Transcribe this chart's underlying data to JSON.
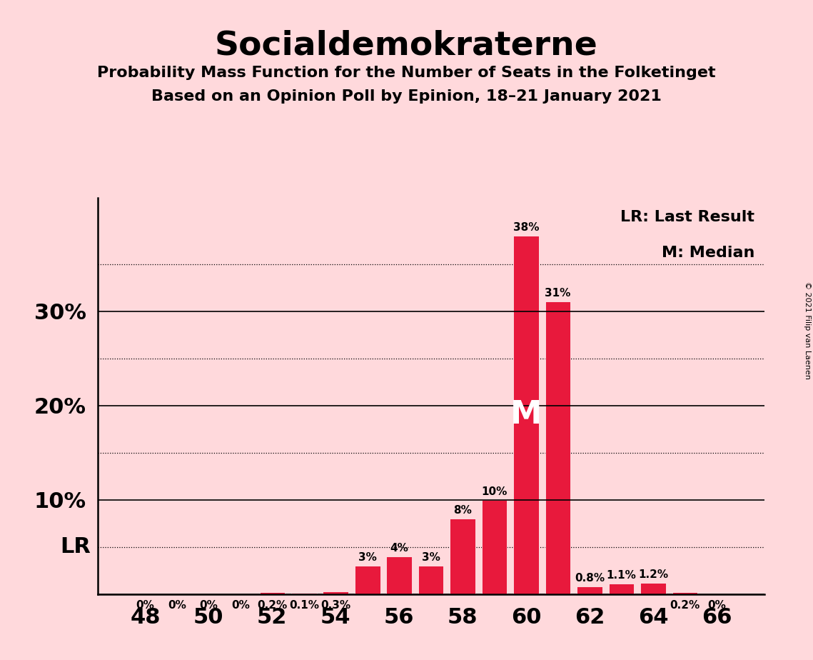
{
  "title": "Socialdemokraterne",
  "subtitle1": "Probability Mass Function for the Number of Seats in the Folketinget",
  "subtitle2": "Based on an Opinion Poll by Epinion, 18–21 January 2021",
  "copyright": "© 2021 Filip van Laenen",
  "seats_data": {
    "48": 0.0,
    "49": 0.0,
    "50": 0.0,
    "51": 0.0,
    "52": 0.2,
    "53": 0.1,
    "54": 0.3,
    "55": 3.0,
    "56": 4.0,
    "57": 3.0,
    "58": 8.0,
    "59": 10.0,
    "60": 38.0,
    "61": 31.0,
    "62": 0.8,
    "63": 1.1,
    "64": 1.2,
    "65": 0.2,
    "66": 0.0
  },
  "label_map": {
    "48": "0%",
    "49": "0%",
    "50": "0%",
    "51": "0%",
    "52": "0.2%",
    "53": "0.1%",
    "54": "0.3%",
    "55": "3%",
    "56": "4%",
    "57": "3%",
    "58": "8%",
    "59": "10%",
    "60": "38%",
    "61": "31%",
    "62": "0.8%",
    "63": "1.1%",
    "64": "1.2%",
    "65": "0.2%",
    "66": "0%"
  },
  "bar_color": "#E8193C",
  "background_color": "#FFD9DC",
  "median_seat": 60,
  "lr_y": 5.0,
  "solid_yticks": [
    10,
    20,
    30
  ],
  "dotted_yticks": [
    5,
    15,
    25,
    35
  ],
  "xlabel_ticks": [
    48,
    50,
    52,
    54,
    56,
    58,
    60,
    62,
    64,
    66
  ],
  "ylim": [
    0,
    42
  ],
  "xlim_left": 46.5,
  "xlim_right": 67.5,
  "legend_lr": "LR: Last Result",
  "legend_m": "M: Median",
  "lr_label": "LR",
  "m_label": "M",
  "bar_width": 0.8
}
